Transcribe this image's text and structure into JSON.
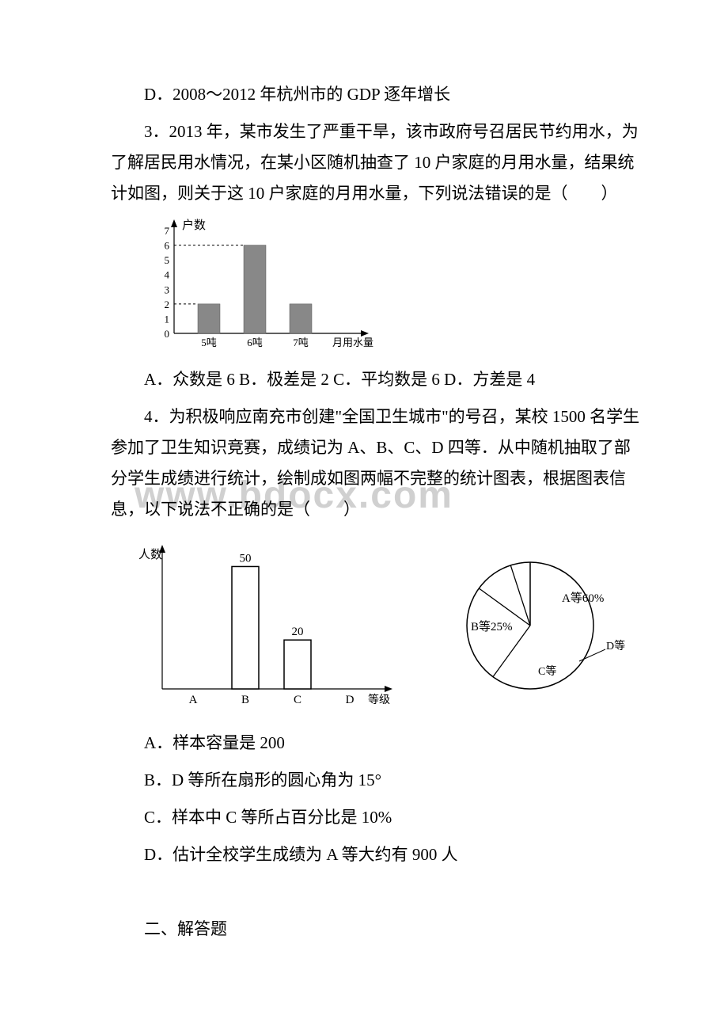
{
  "watermark": "www.bdocx.com",
  "q2_option_d": "D．2008～2012 年杭州市的 GDP 逐年增长",
  "q3_stem": "3．2013 年，某市发生了严重干旱，该市政府号召居民节约用水，为了解居民用水情况，在某小区随机抽查了 10 户家庭的月用水量，结果统计如图，则关于这 10 户家庭的月用水量，下列说法错误的是（　　）",
  "q3_options": "A．众数是 6  B．极差是 2  C．平均数是 6  D．方差是 4",
  "q3_chart": {
    "y_label": "户数",
    "x_label": "月用水量",
    "y_ticks": [
      0,
      1,
      2,
      3,
      4,
      5,
      6,
      7
    ],
    "categories": [
      "5吨",
      "6吨",
      "7吨"
    ],
    "values": [
      2,
      6,
      2
    ],
    "bar_color": "#888888",
    "axis_color": "#000000"
  },
  "q4_stem": "4．为积极响应南充市创建\"全国卫生城市\"的号召，某校 1500 名学生参加了卫生知识竞赛，成绩记为 A、B、C、D 四等．从中随机抽取了部分学生成绩进行统计，绘制成如图两幅不完整的统计图表，根据图表信息，以下说法不正确的是（　　）",
  "q4_bar": {
    "y_label": "人数",
    "x_label": "等级",
    "categories": [
      "A",
      "B",
      "C",
      "D"
    ],
    "labels_above": {
      "B": "50",
      "C": "20"
    },
    "values": [
      0,
      50,
      20,
      0
    ],
    "bar_outline": "#000000",
    "bar_fill": "#ffffff"
  },
  "q4_pie": {
    "slices": [
      {
        "label": "A等60%",
        "pct": 60
      },
      {
        "label": "B等25%",
        "pct": 25
      },
      {
        "label": "C等",
        "pct": 10
      },
      {
        "label": "D等",
        "pct": 5
      }
    ],
    "outline": "#000000",
    "fill": "#ffffff"
  },
  "q4_opt_a": "A．样本容量是 200",
  "q4_opt_b": "B．D 等所在扇形的圆心角为 15°",
  "q4_opt_c": "C．样本中 C 等所占百分比是 10%",
  "q4_opt_d": "D．估计全校学生成绩为 A 等大约有 900 人",
  "section2": "二、解答题"
}
